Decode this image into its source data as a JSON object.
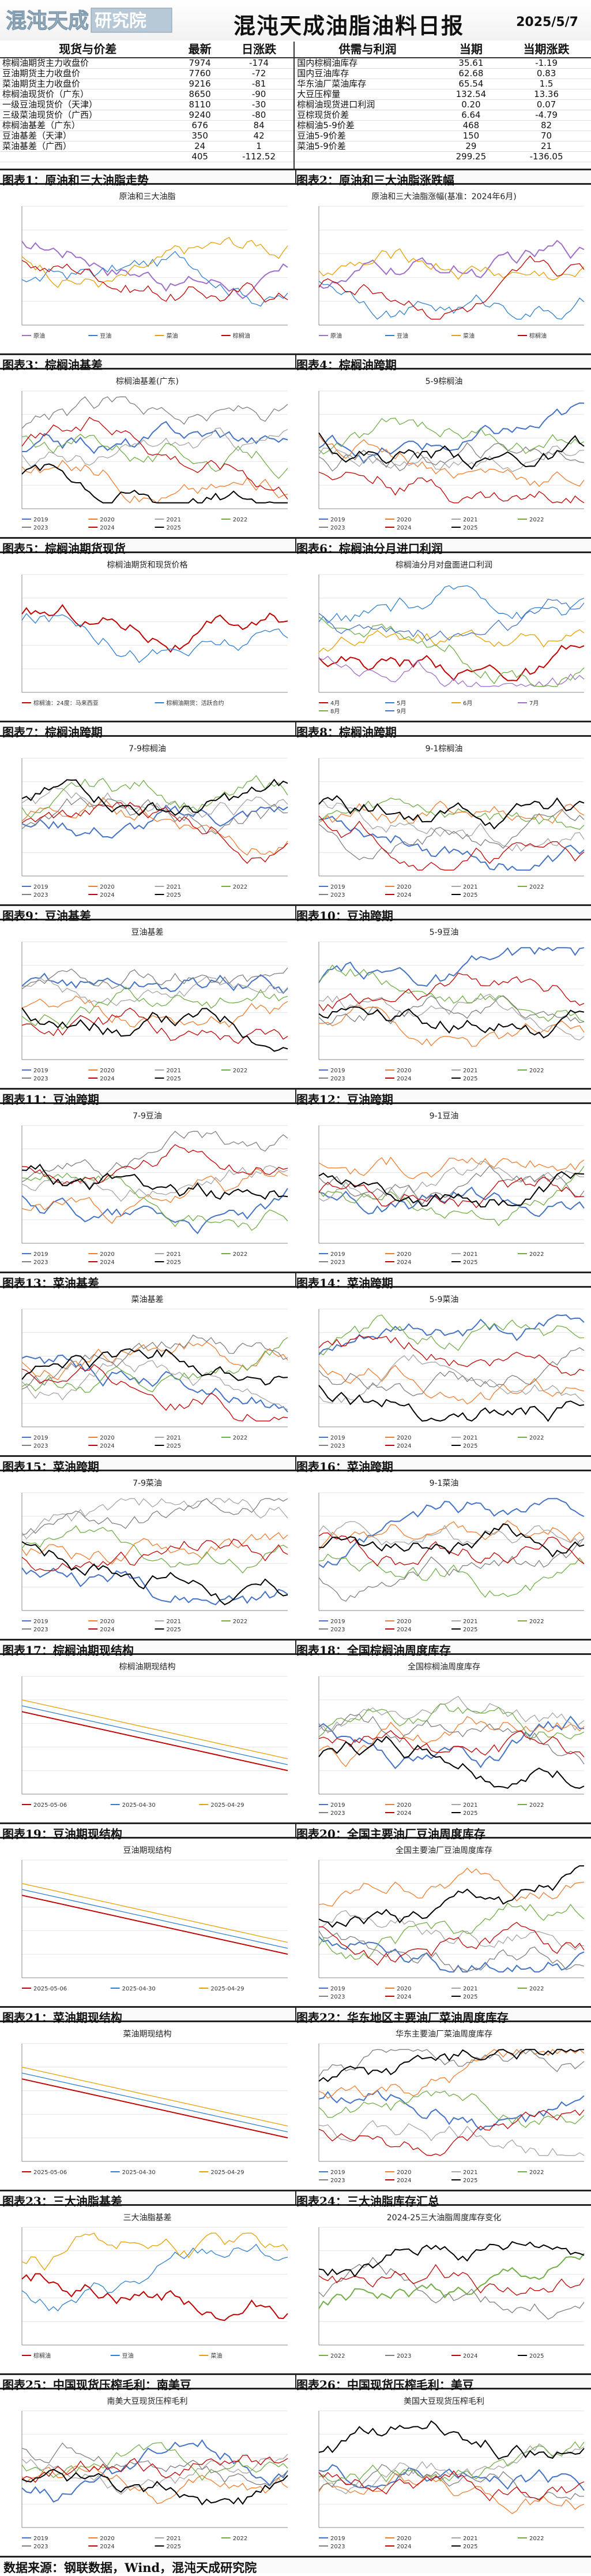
{
  "header": {
    "title": "混沌天成油脂油料日报",
    "date": "2025/5/7",
    "logo_text": "混沌天成 研究院"
  },
  "table": {
    "headers": [
      "现货与价差",
      "最新",
      "日涨跌",
      "供需与利润",
      "当期",
      "当期涨跌"
    ],
    "rows": [
      [
        "棕榈油期货主力收盘价",
        "7974",
        "-174",
        "国内棕榈油库存",
        "35.61",
        "-1.19"
      ],
      [
        "豆油期货主力收盘价",
        "7760",
        "-72",
        "国内豆油库存",
        "62.68",
        "0.83"
      ],
      [
        "菜油期货主力收盘价",
        "9216",
        "-81",
        "华东油厂菜油库存",
        "65.54",
        "1.5"
      ],
      [
        "棕榈油现货价（广东）",
        "8650",
        "-90",
        "大豆压榨量",
        "132.54",
        "13.36"
      ],
      [
        "一级豆油现货价（天津）",
        "8110",
        "-30",
        "棕榈油现货进口利润",
        "0.20",
        "0.07"
      ],
      [
        "三级菜油现货价（广西）",
        "9240",
        "-80",
        "豆棕现货价差",
        "6.64",
        "-4.79"
      ],
      [
        "棕榈油基差（广东）",
        "676",
        "84",
        "棕榈油5-9价差",
        "468",
        "82"
      ],
      [
        "豆油基差（天津）",
        "350",
        "42",
        "豆油5-9价差",
        "150",
        "70"
      ],
      [
        "菜油基差（广西）",
        "24",
        "1",
        "菜油5-9价差",
        "29",
        "21"
      ],
      [
        "",
        "405",
        "-112.52",
        "",
        "299.25",
        "-136.05"
      ],
      [
        "",
        "",
        "",
        "",
        "",
        ""
      ]
    ]
  },
  "sections": [
    [
      "图表1：原油和三大油脂走势",
      "图表2：原油和三大油脂涨跌幅"
    ],
    [
      "图表3：棕榈油基差",
      "图表4：棕榈油跨期"
    ],
    [
      "图表5：棕榈油期货现货",
      "图表6：棕榈油分月进口利润"
    ],
    [
      "图表7：棕榈油跨期",
      "图表8：棕榈油跨期"
    ],
    [
      "图表9：豆油基差",
      "图表10：豆油跨期"
    ],
    [
      "图表11：豆油跨期",
      "图表12：豆油跨期"
    ],
    [
      "图表13：菜油基差",
      "图表14：菜油跨期"
    ],
    [
      "图表15：菜油跨期",
      "图表16：菜油跨期"
    ],
    [
      "图表17：棕榈油期现结构",
      "图表18：全国棕榈油周度库存"
    ],
    [
      "图表19：豆油期现结构",
      "图表20：全国主要油厂豆油周度库存"
    ],
    [
      "图表21：菜油期现结构",
      "图表22：华东地区主要油厂菜油周度库存"
    ],
    [
      "图表23：三大油脂基差",
      "图表24：三大油脂库存汇总"
    ],
    [
      "图表25：中国现货压榨毛利：南美豆",
      "图表26：中国现货压榨毛利：美豆"
    ]
  ],
  "charts": [
    {
      "title": "原油和三大油脂",
      "legend": [
        "原油",
        "豆油",
        "菜油",
        "棕榈油"
      ]
    },
    {
      "title": "原油和三大油脂涨幅(基准：2024年6月)",
      "legend": [
        "原油",
        "豆油",
        "菜油",
        "棕榈油"
      ]
    },
    {
      "title": "棕榈油基差(广东)",
      "legend": [
        "2019",
        "2020",
        "2021",
        "2022",
        "2023",
        "2024",
        "2025"
      ]
    },
    {
      "title": "5-9棕榈油",
      "legend": [
        "2019",
        "2020",
        "2021",
        "2022",
        "2023",
        "2024",
        "2025"
      ]
    },
    {
      "title": "棕榈油期货和现货价格",
      "legend": [
        "棕榈油：24度：马来西亚",
        "棕榈油期货：活跃合约"
      ]
    },
    {
      "title": "棕榈油分月对盘面进口利润",
      "legend": [
        "4月",
        "5月",
        "6月",
        "7月",
        "8月",
        "9月"
      ]
    },
    {
      "title": "7-9棕榈油",
      "legend": [
        "2019",
        "2020",
        "2021",
        "2022",
        "2023",
        "2024",
        "2025"
      ]
    },
    {
      "title": "9-1棕榈油",
      "legend": [
        "2019",
        "2020",
        "2021",
        "2022",
        "2023",
        "2024",
        "2025"
      ]
    },
    {
      "title": "豆油基差",
      "legend": [
        "2019",
        "2020",
        "2021",
        "2022",
        "2023",
        "2024",
        "2025"
      ]
    },
    {
      "title": "5-9豆油",
      "legend": [
        "2019",
        "2020",
        "2021",
        "2022",
        "2023",
        "2024",
        "2025"
      ]
    },
    {
      "title": "7-9豆油",
      "legend": [
        "2019",
        "2020",
        "2021",
        "2022",
        "2023",
        "2024",
        "2025"
      ]
    },
    {
      "title": "9-1豆油",
      "legend": [
        "2019",
        "2020",
        "2021",
        "2022",
        "2023",
        "2024",
        "2025"
      ]
    },
    {
      "title": "菜油基差",
      "legend": [
        "2019",
        "2020",
        "2021",
        "2022",
        "2023",
        "2024",
        "2025"
      ]
    },
    {
      "title": "5-9菜油",
      "legend": [
        "2019",
        "2020",
        "2021",
        "2022",
        "2023",
        "2024",
        "2025"
      ]
    },
    {
      "title": "7-9菜油",
      "legend": [
        "2019",
        "2020",
        "2021",
        "2022",
        "2023",
        "2024",
        "2025"
      ]
    },
    {
      "title": "9-1菜油",
      "legend": [
        "2019",
        "2020",
        "2021",
        "2022",
        "2023",
        "2024",
        "2025"
      ]
    },
    {
      "title": "棕榈油期现结构",
      "legend": [
        "2025-05-06",
        "2025-04-30",
        "2025-04-29"
      ]
    },
    {
      "title": "全国棕榈油周度库存",
      "legend": [
        "2019",
        "2020",
        "2021",
        "2022",
        "2023",
        "2024",
        "2025"
      ]
    },
    {
      "title": "豆油期现结构",
      "legend": [
        "2025-05-06",
        "2025-04-30",
        "2025-04-29"
      ]
    },
    {
      "title": "全国主要油厂豆油周度库存",
      "legend": [
        "2019",
        "2020",
        "2021",
        "2022",
        "2023",
        "2024",
        "2025"
      ]
    },
    {
      "title": "菜油期现结构",
      "legend": [
        "2025-05-06",
        "2025-04-30",
        "2025-04-29"
      ]
    },
    {
      "title": "华东主要油厂菜油周度库存",
      "legend": [
        "2019",
        "2020",
        "2021",
        "2022",
        "2023",
        "2024",
        "2025"
      ]
    },
    {
      "title": "三大油脂基差",
      "legend": [
        "棕榈油",
        "豆油",
        "菜油"
      ]
    },
    {
      "title": "2024-25三大油脂周度库存变化",
      "legend": [
        "2022",
        "2023",
        "2024",
        "2025"
      ]
    },
    {
      "title": "南美大豆现货压榨毛利",
      "legend": [
        "2019",
        "2020",
        "2021",
        "2022",
        "2023",
        "2024",
        "2025"
      ]
    },
    {
      "title": "美国大豆现货压榨毛利",
      "legend": [
        "2019",
        "2020",
        "2021",
        "2022",
        "2023",
        "2024",
        "2025"
      ]
    }
  ],
  "footer": {
    "text": "数据来源：钢联数据，Wind，混沌天成研究院"
  },
  "colors": {
    "2019": "#4472c4",
    "2020": "#ed7d31",
    "2021": "#a5a5a5",
    "2022": "#70ad47",
    "2023": "#7f7f7f",
    "2024": "#c00000",
    "2025": "#000000",
    "palm": "#c00000",
    "soy": "#2f7fd0",
    "rape": "#e8a000",
    "crude": "#9e6fc8"
  }
}
